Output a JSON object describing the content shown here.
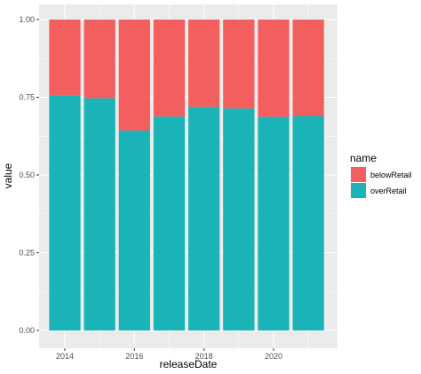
{
  "chart_data": {
    "type": "bar",
    "stacked": true,
    "x": [
      2014,
      2015,
      2016,
      2017,
      2018,
      2019,
      2020,
      2021
    ],
    "series": [
      {
        "name": "overRetail",
        "color": "#1ab3b8",
        "values": [
          0.756,
          0.747,
          0.643,
          0.688,
          0.719,
          0.714,
          0.687,
          0.69
        ]
      },
      {
        "name": "belowRetail",
        "color": "#f35f5f",
        "values": [
          0.244,
          0.253,
          0.357,
          0.312,
          0.281,
          0.286,
          0.313,
          0.31
        ]
      }
    ],
    "xlabel": "releaseDate",
    "ylabel": "value",
    "ylim": [
      0,
      1
    ],
    "xlim": [
      2013.4,
      2021.6
    ],
    "y_ticks": [
      {
        "value": 0,
        "label": "0.00"
      },
      {
        "value": 0.25,
        "label": "0.25"
      },
      {
        "value": 0.5,
        "label": "0.50"
      },
      {
        "value": 0.75,
        "label": "0.75"
      },
      {
        "value": 1,
        "label": "1.00"
      }
    ],
    "x_ticks": [
      {
        "value": 2014,
        "label": "2014"
      },
      {
        "value": 2016,
        "label": "2016"
      },
      {
        "value": 2018,
        "label": "2018"
      },
      {
        "value": 2020,
        "label": "2020"
      }
    ],
    "legend": {
      "title": "name",
      "position": "right",
      "entries": [
        {
          "label": "belowRetail",
          "color": "#f35f5f"
        },
        {
          "label": "overRetail",
          "color": "#1ab3b8"
        }
      ]
    },
    "panel_color": "#ebebeb",
    "grid": true
  }
}
